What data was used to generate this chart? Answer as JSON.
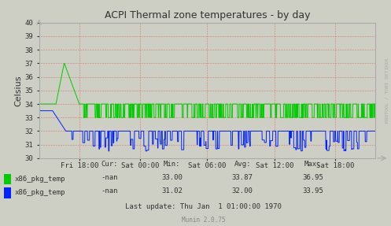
{
  "title": "ACPI Thermal zone temperatures - by day",
  "ylabel": "Celsius",
  "bg_color": "#CDCFC4",
  "plot_bg_color": "#CDCFC4",
  "grid_color_h": "#FF0000",
  "grid_color_v": "#FF0000",
  "ylim": [
    30,
    40
  ],
  "yticks": [
    30,
    31,
    32,
    33,
    34,
    35,
    36,
    37,
    38,
    39,
    40
  ],
  "xtick_labels": [
    "Fri 18:00",
    "Sat 00:00",
    "Sat 06:00",
    "Sat 12:00",
    "Sat 18:00"
  ],
  "xtick_positions": [
    0.12,
    0.3,
    0.5,
    0.7,
    0.88
  ],
  "legend_entries": [
    {
      "label": "x86_pkg_temp",
      "color": "#00CC00"
    },
    {
      "label": "x86_pkg_temp",
      "color": "#0022FF"
    }
  ],
  "legend_stats": {
    "headers": [
      "Cur:",
      "Min:",
      "Avg:",
      "Max:"
    ],
    "rows": [
      [
        "-nan",
        "33.00",
        "33.87",
        "36.95"
      ],
      [
        "-nan",
        "31.02",
        "32.00",
        "33.95"
      ]
    ]
  },
  "footer": "Last update: Thu Jan  1 01:00:00 1970",
  "munin_version": "Munin 2.0.75",
  "green_base": 34.0,
  "green_spike_val": 37.0,
  "blue_base": 32.0,
  "title_color": "#333333",
  "axis_color": "#333333",
  "tick_color": "#333333",
  "watermark_color": "#AAAAAA",
  "spine_color": "#AAAAAA"
}
